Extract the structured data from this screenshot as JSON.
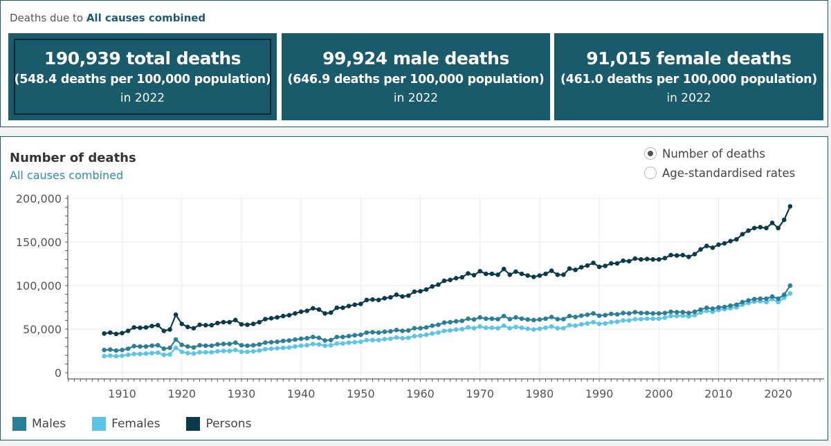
{
  "summary": {
    "prefix": "Deaths due to",
    "cause": "All causes combined",
    "cards": [
      {
        "headline": "190,939 total deaths",
        "rate": "(548.4 deaths per 100,000 population)",
        "year": "in 2022"
      },
      {
        "headline": "99,924 male deaths",
        "rate": "(646.9 deaths per 100,000 population)",
        "year": "in 2022"
      },
      {
        "headline": "91,015 female deaths",
        "rate": "(461.0 deaths per 100,000 population)",
        "year": "in 2022"
      }
    ]
  },
  "chart_header": {
    "title": "Number of deaths",
    "subtitle": "All causes combined"
  },
  "options": {
    "items": [
      {
        "label": "Number of deaths",
        "selected": true
      },
      {
        "label": "Age-standardised rates",
        "selected": false
      }
    ]
  },
  "colors": {
    "panel": "#1a5b6b",
    "Males": "#2a7f96",
    "Females": "#5cc4e4",
    "Persons": "#0b3b4a"
  },
  "chart_data": {
    "type": "line",
    "title": "Number of deaths",
    "subtitle": "All causes combined",
    "xlabel": "",
    "ylabel": "",
    "ylim": [
      0,
      200000
    ],
    "xlim": [
      1907,
      2022
    ],
    "yticks": [
      0,
      50000,
      100000,
      150000,
      200000
    ],
    "ytick_labels": [
      "0",
      "50,000",
      "100,000",
      "150,000",
      "200,000"
    ],
    "xticks": [
      1910,
      1920,
      1930,
      1940,
      1950,
      1960,
      1970,
      1980,
      1990,
      2000,
      2010,
      2020
    ],
    "grid": true,
    "legend": "bottom-left",
    "x": [
      1907,
      1908,
      1909,
      1910,
      1911,
      1912,
      1913,
      1914,
      1915,
      1916,
      1917,
      1918,
      1919,
      1920,
      1921,
      1922,
      1923,
      1924,
      1925,
      1926,
      1927,
      1928,
      1929,
      1930,
      1931,
      1932,
      1933,
      1934,
      1935,
      1936,
      1937,
      1938,
      1939,
      1940,
      1941,
      1942,
      1943,
      1944,
      1945,
      1946,
      1947,
      1948,
      1949,
      1950,
      1951,
      1952,
      1953,
      1954,
      1955,
      1956,
      1957,
      1958,
      1959,
      1960,
      1961,
      1962,
      1963,
      1964,
      1965,
      1966,
      1967,
      1968,
      1969,
      1970,
      1971,
      1972,
      1973,
      1974,
      1975,
      1976,
      1977,
      1978,
      1979,
      1980,
      1981,
      1982,
      1983,
      1984,
      1985,
      1986,
      1987,
      1988,
      1989,
      1990,
      1991,
      1992,
      1993,
      1994,
      1995,
      1996,
      1997,
      1998,
      1999,
      2000,
      2001,
      2002,
      2003,
      2004,
      2005,
      2006,
      2007,
      2008,
      2009,
      2010,
      2011,
      2012,
      2013,
      2014,
      2015,
      2016,
      2017,
      2018,
      2019,
      2020,
      2021,
      2022
    ],
    "series": [
      {
        "name": "Males",
        "values": [
          26000,
          26500,
          25500,
          26000,
          27500,
          30500,
          30000,
          30000,
          31000,
          31500,
          27500,
          28500,
          38000,
          32000,
          30000,
          29000,
          31500,
          31000,
          31000,
          32500,
          33000,
          33000,
          34500,
          31500,
          31000,
          31500,
          32500,
          34500,
          35000,
          35500,
          36500,
          37000,
          38000,
          39000,
          39500,
          41000,
          40000,
          37000,
          37500,
          41000,
          41000,
          42000,
          43000,
          43500,
          46000,
          46500,
          46000,
          47000,
          47500,
          49000,
          48000,
          48500,
          51000,
          51000,
          52000,
          54000,
          55000,
          57500,
          58000,
          59000,
          59500,
          62000,
          61000,
          63500,
          62000,
          62000,
          61500,
          65000,
          61500,
          63500,
          62000,
          61000,
          60500,
          61000,
          62000,
          64000,
          61500,
          61500,
          65000,
          64000,
          65500,
          66500,
          68000,
          65500,
          66000,
          67500,
          67000,
          68500,
          68000,
          69500,
          68500,
          68500,
          68000,
          68000,
          68500,
          70000,
          69500,
          69500,
          68500,
          70000,
          72500,
          74500,
          73500,
          75000,
          75500,
          77000,
          78000,
          81000,
          83000,
          84500,
          85000,
          85000,
          87500,
          85000,
          89500,
          99924
        ]
      },
      {
        "name": "Females",
        "values": [
          19000,
          19500,
          19000,
          19500,
          20500,
          21500,
          21500,
          22000,
          22500,
          23000,
          20500,
          21000,
          28500,
          24000,
          22500,
          22000,
          23500,
          23500,
          23500,
          24500,
          25000,
          25000,
          26000,
          24000,
          24000,
          24500,
          25500,
          27000,
          27500,
          28000,
          28500,
          29000,
          30000,
          31000,
          31500,
          33000,
          32500,
          31000,
          31500,
          33500,
          33500,
          34500,
          35000,
          35500,
          37500,
          37500,
          37500,
          38500,
          39000,
          40500,
          39500,
          40000,
          42000,
          42500,
          43500,
          45000,
          46000,
          48000,
          48500,
          49500,
          50000,
          52000,
          51000,
          53000,
          51500,
          51500,
          51000,
          54000,
          51000,
          52500,
          51500,
          50500,
          49500,
          50500,
          51500,
          53000,
          51000,
          51000,
          54500,
          54000,
          55500,
          56500,
          58000,
          56000,
          56500,
          58000,
          58500,
          60000,
          60000,
          61500,
          61500,
          62000,
          62000,
          62000,
          63000,
          65000,
          65000,
          65500,
          64500,
          66000,
          69000,
          71000,
          70000,
          72000,
          73000,
          74000,
          75000,
          78000,
          80000,
          81500,
          82000,
          81000,
          84500,
          81000,
          86000,
          91015
        ]
      },
      {
        "name": "Persons",
        "values": [
          45000,
          46000,
          44500,
          45500,
          48000,
          52000,
          51500,
          52000,
          53500,
          54500,
          48000,
          49500,
          66500,
          56000,
          52500,
          51000,
          55000,
          54500,
          54500,
          57000,
          58000,
          58000,
          60500,
          55500,
          55000,
          56000,
          58000,
          61500,
          62500,
          63500,
          65000,
          66000,
          68000,
          70000,
          71000,
          74000,
          72500,
          68000,
          69000,
          74500,
          74500,
          76500,
          78000,
          79000,
          83500,
          84000,
          83500,
          85500,
          86500,
          89500,
          87500,
          88500,
          93000,
          93500,
          95500,
          99000,
          101000,
          105500,
          106500,
          108500,
          109500,
          114000,
          112000,
          116500,
          113500,
          113500,
          112500,
          119000,
          112500,
          116000,
          113500,
          111500,
          110000,
          111500,
          113500,
          117000,
          112500,
          112500,
          119500,
          118000,
          121000,
          123000,
          126000,
          121500,
          122500,
          125500,
          125500,
          128500,
          128000,
          131000,
          130000,
          130500,
          130000,
          130000,
          131500,
          135000,
          134500,
          135000,
          133000,
          136000,
          141500,
          145500,
          143500,
          147000,
          148500,
          151000,
          153000,
          159000,
          163000,
          166000,
          167000,
          166000,
          172000,
          166000,
          175500,
          190939
        ]
      }
    ]
  }
}
